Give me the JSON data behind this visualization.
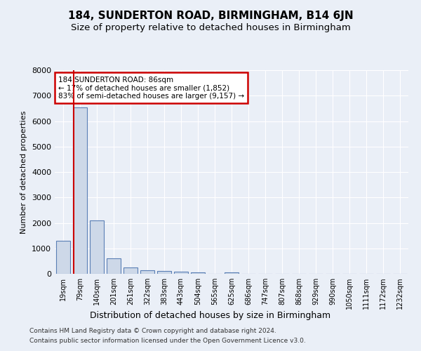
{
  "title1": "184, SUNDERTON ROAD, BIRMINGHAM, B14 6JN",
  "title2": "Size of property relative to detached houses in Birmingham",
  "xlabel": "Distribution of detached houses by size in Birmingham",
  "ylabel": "Number of detached properties",
  "footer1": "Contains HM Land Registry data © Crown copyright and database right 2024.",
  "footer2": "Contains public sector information licensed under the Open Government Licence v3.0.",
  "categories": [
    "19sqm",
    "79sqm",
    "140sqm",
    "201sqm",
    "261sqm",
    "322sqm",
    "383sqm",
    "443sqm",
    "504sqm",
    "565sqm",
    "625sqm",
    "686sqm",
    "747sqm",
    "807sqm",
    "868sqm",
    "929sqm",
    "990sqm",
    "1050sqm",
    "1111sqm",
    "1172sqm",
    "1232sqm"
  ],
  "values": [
    1300,
    6550,
    2100,
    620,
    250,
    130,
    100,
    70,
    55,
    0,
    55,
    0,
    0,
    0,
    0,
    0,
    0,
    0,
    0,
    0,
    0
  ],
  "bar_color": "#cdd8e8",
  "bar_edge_color": "#5a7fb5",
  "vline_x": 0.63,
  "vline_color": "#cc0000",
  "annotation_text": "184 SUNDERTON ROAD: 86sqm\n← 17% of detached houses are smaller (1,852)\n83% of semi-detached houses are larger (9,157) →",
  "annotation_box_color": "#cc0000",
  "ylim": [
    0,
    8000
  ],
  "yticks": [
    0,
    1000,
    2000,
    3000,
    4000,
    5000,
    6000,
    7000,
    8000
  ],
  "bg_color": "#eaeff7",
  "plot_bg_color": "#eaeff7",
  "grid_color": "#ffffff",
  "title1_fontsize": 11,
  "title2_fontsize": 9.5,
  "bar_width": 0.85
}
